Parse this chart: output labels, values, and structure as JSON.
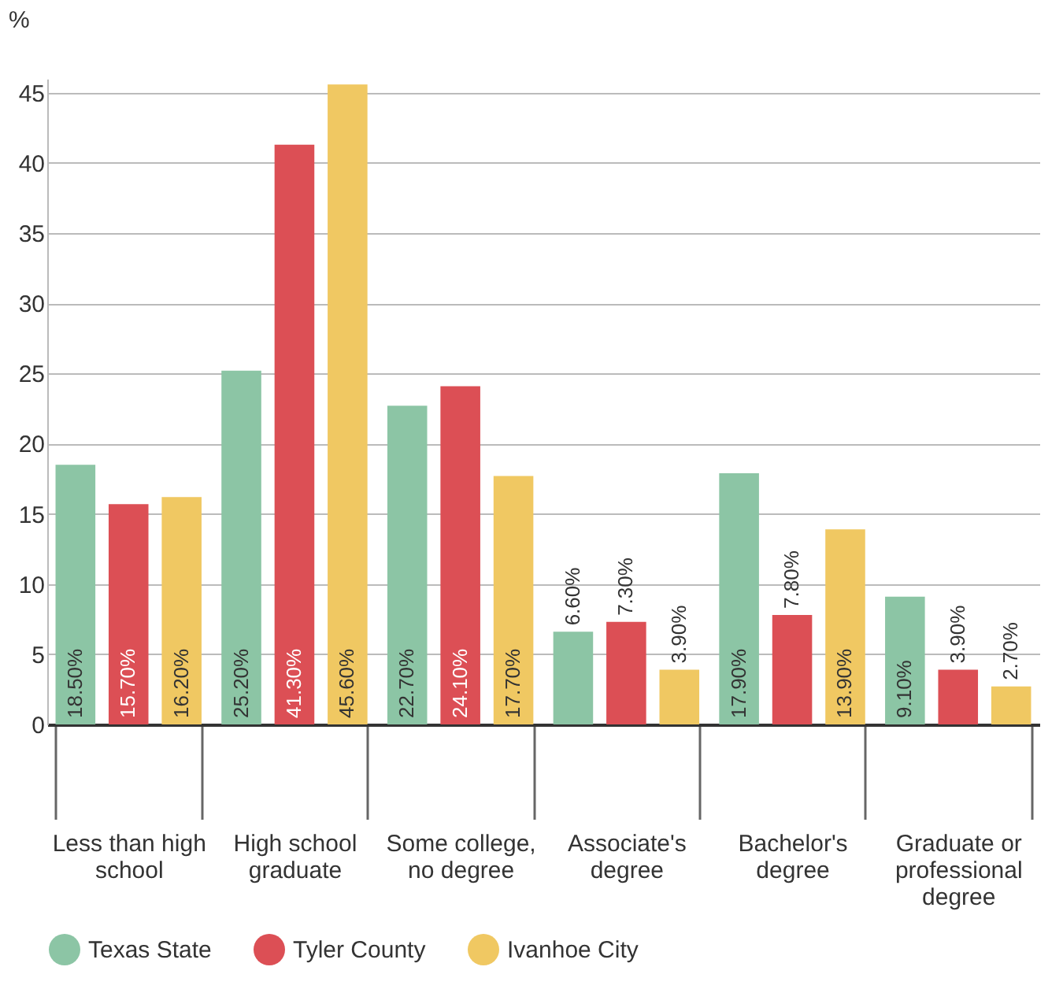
{
  "chart_data": {
    "type": "bar",
    "ylabel": "%",
    "categories": [
      "Less than high school",
      "High school graduate",
      "Some college, no degree",
      "Associate's degree",
      "Bachelor's degree",
      "Graduate or professional degree"
    ],
    "series": [
      {
        "name": "Texas State",
        "color": "#8cc5a5",
        "values": [
          18.5,
          25.2,
          22.7,
          6.6,
          17.9,
          9.1
        ],
        "value_labels": [
          "18.50%",
          "25.20%",
          "22.70%",
          "6.60%",
          "17.90%",
          "9.10%"
        ]
      },
      {
        "name": "Tyler County",
        "color": "#dc4f55",
        "values": [
          15.7,
          41.3,
          24.1,
          7.3,
          7.8,
          3.9
        ],
        "value_labels": [
          "15.70%",
          "41.30%",
          "24.10%",
          "7.30%",
          "7.80%",
          "3.90%"
        ]
      },
      {
        "name": "Ivanhoe City",
        "color": "#f0c862",
        "values": [
          16.2,
          45.6,
          17.7,
          3.9,
          13.9,
          2.7
        ],
        "value_labels": [
          "16.20%",
          "45.60%",
          "17.70%",
          "3.90%",
          "13.90%",
          "2.70%"
        ]
      }
    ],
    "ylim": [
      0,
      46
    ],
    "yticks": [
      0,
      5,
      10,
      15,
      20,
      25,
      30,
      35,
      40,
      45
    ],
    "grid": "y",
    "legend": "bottom"
  }
}
